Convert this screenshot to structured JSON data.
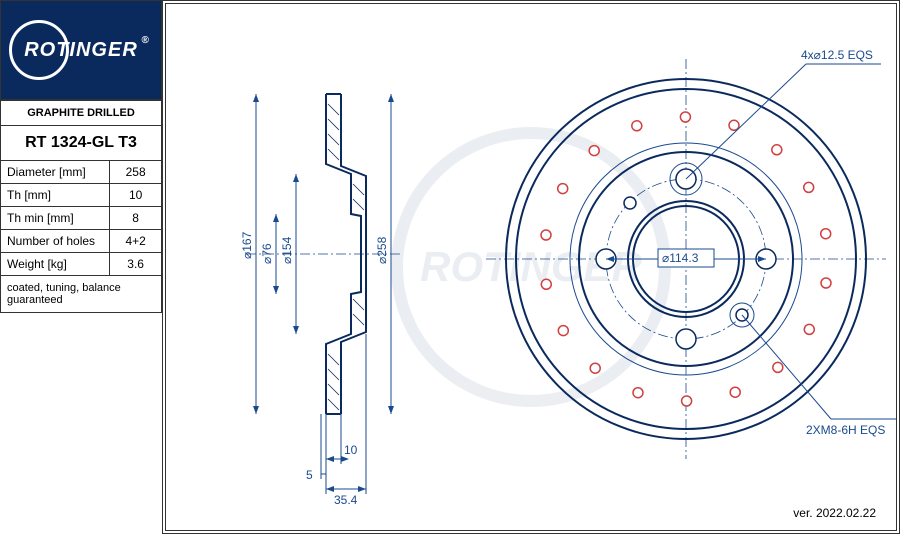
{
  "logo": {
    "text": "ROTINGER"
  },
  "table": {
    "header": "GRAPHITE DRILLED",
    "product": "RT 1324-GL T3",
    "rows": [
      {
        "label": "Diameter [mm]",
        "value": "258"
      },
      {
        "label": "Th [mm]",
        "value": "10"
      },
      {
        "label": "Th min [mm]",
        "value": "8"
      },
      {
        "label": "Number of holes",
        "value": "4+2"
      },
      {
        "label": "Weight [kg]",
        "value": "3.6"
      }
    ],
    "footer": "coated, tuning, balance guaranteed"
  },
  "version": "ver. 2022.02.22",
  "side_view": {
    "dims": {
      "d167": "⌀167",
      "d76": "⌀76",
      "d154": "⌀154",
      "d258": "⌀258",
      "bottom5": "5",
      "bottom10": "10",
      "bottom354": "35.4"
    }
  },
  "front_view": {
    "outer_d": 258,
    "hub_d": 76,
    "bolt_pattern_d": 114.3,
    "callout_top": "4x⌀12.5 EQS",
    "callout_center": "⌀114.3",
    "callout_bottom": "2XM8-6H EQS",
    "drill_holes": 18,
    "hole_color": "#d04040",
    "part_color": "#0a2a5e",
    "dim_color": "#1a4a8e"
  }
}
